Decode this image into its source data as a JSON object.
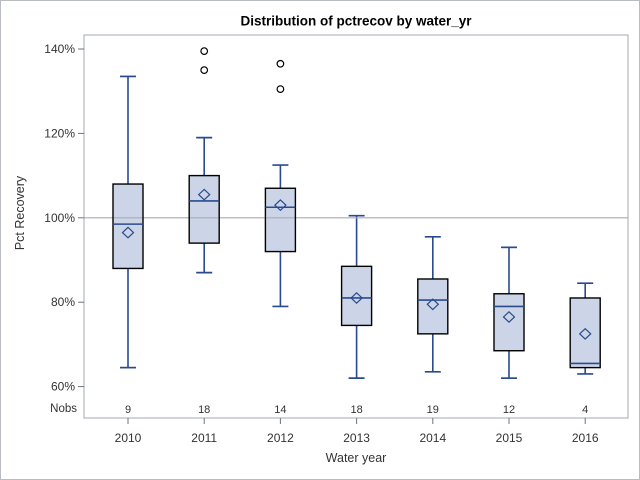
{
  "chart_data": {
    "type": "boxplot",
    "title": "Distribution of pctrecov by water_yr",
    "xlabel": "Water year",
    "ylabel": "Pct Recovery",
    "nobs_label": "Nobs",
    "y_ticks": [
      140,
      120,
      100,
      80,
      60
    ],
    "y_tick_labels": [
      "140%",
      "120%",
      "100%",
      "80%",
      "60%"
    ],
    "reference_line": 100,
    "ylim": [
      52.5,
      143.5
    ],
    "grid": "single horizontal reference line at 100%",
    "legend_position": "none",
    "categories": [
      "2010",
      "2011",
      "2012",
      "2013",
      "2014",
      "2015",
      "2016"
    ],
    "nobs": [
      "9",
      "18",
      "14",
      "18",
      "19",
      "12",
      "4"
    ],
    "series": [
      {
        "year": "2010",
        "nobs": "9",
        "whisker_low": 64.5,
        "q1": 88,
        "median": 98.5,
        "q3": 108,
        "whisker_high": 133.5,
        "mean": 96.5,
        "outliers": []
      },
      {
        "year": "2011",
        "nobs": "18",
        "whisker_low": 87,
        "q1": 94,
        "median": 104,
        "q3": 110,
        "whisker_high": 119,
        "mean": 105.5,
        "outliers": [
          139.5,
          135
        ]
      },
      {
        "year": "2012",
        "nobs": "14",
        "whisker_low": 79,
        "q1": 92,
        "median": 102.5,
        "q3": 107,
        "whisker_high": 112.5,
        "mean": 103,
        "outliers": [
          136.5,
          130.5
        ]
      },
      {
        "year": "2013",
        "nobs": "18",
        "whisker_low": 62,
        "q1": 74.5,
        "median": 81,
        "q3": 88.5,
        "whisker_high": 100.5,
        "mean": 81,
        "outliers": []
      },
      {
        "year": "2014",
        "nobs": "19",
        "whisker_low": 63.5,
        "q1": 72.5,
        "median": 80.5,
        "q3": 85.5,
        "whisker_high": 95.5,
        "mean": 79.5,
        "outliers": []
      },
      {
        "year": "2015",
        "nobs": "12",
        "whisker_low": 62,
        "q1": 68.5,
        "median": 79,
        "q3": 82,
        "whisker_high": 93,
        "mean": 76.5,
        "outliers": []
      },
      {
        "year": "2016",
        "nobs": "4",
        "whisker_low": 63,
        "q1": 64.5,
        "median": 65.5,
        "q3": 81,
        "whisker_high": 84.5,
        "mean": 72.5,
        "outliers": []
      }
    ],
    "colors": {
      "box_fill": "#ccd5e7",
      "box_border": "#000000",
      "line": "#2a4a8f",
      "reference": "#ababab",
      "frame": "#a3a9b0",
      "tick": "#707478",
      "text": "#333333",
      "outlier": "#000000"
    }
  }
}
